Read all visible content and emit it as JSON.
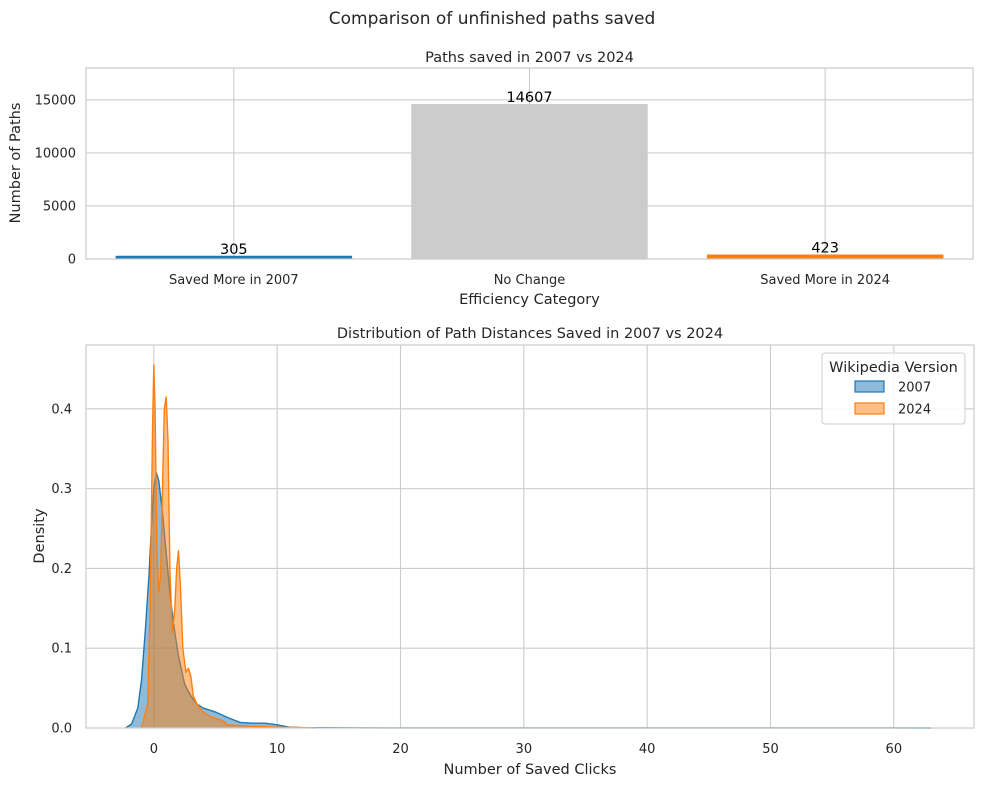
{
  "figure": {
    "suptitle": "Comparison of unfinished paths saved"
  },
  "chart_data": [
    {
      "type": "bar",
      "title": "Paths saved in 2007 vs 2024",
      "xlabel": "Efficiency Category",
      "ylabel": "Number of Paths",
      "categories": [
        "Saved More in 2007",
        "No Change",
        "Saved More in 2024"
      ],
      "values": [
        305,
        14607,
        423
      ],
      "bar_labels": [
        "305",
        "14607",
        "423"
      ],
      "colors": [
        "#1f77b4",
        "#cccccc",
        "#ff7f0e"
      ],
      "ylim": [
        0,
        18000
      ],
      "yticks": [
        0,
        5000,
        10000,
        15000
      ],
      "grid": true
    },
    {
      "type": "area",
      "title": "Distribution of Path Distances Saved in 2007 vs 2024",
      "xlabel": "Number of Saved Clicks",
      "ylabel": "Density",
      "xlim": [
        -5.5,
        66.5
      ],
      "ylim": [
        0,
        0.48
      ],
      "xticks": [
        0,
        10,
        20,
        30,
        40,
        50,
        60
      ],
      "yticks": [
        0.0,
        0.1,
        0.2,
        0.3,
        0.4
      ],
      "grid": true,
      "legend": {
        "title": "Wikipedia Version",
        "placement": "top-right"
      },
      "series": [
        {
          "name": "2007",
          "color": "#1f77b4",
          "x": [
            -2.3,
            -1.8,
            -1.3,
            -1.0,
            -0.7,
            -0.4,
            -0.2,
            0.0,
            0.2,
            0.4,
            0.7,
            1.0,
            1.3,
            1.6,
            2.0,
            2.5,
            3.0,
            3.5,
            4.0,
            5.0,
            6.0,
            7.0,
            8.0,
            9.0,
            10.0,
            11.0,
            12.0,
            14.0,
            16.0,
            20.0,
            30.0,
            40.0,
            50.0,
            60.0,
            63.0
          ],
          "y": [
            0.0,
            0.005,
            0.025,
            0.06,
            0.12,
            0.19,
            0.25,
            0.3,
            0.32,
            0.31,
            0.27,
            0.22,
            0.17,
            0.13,
            0.09,
            0.055,
            0.04,
            0.03,
            0.025,
            0.02,
            0.013,
            0.007,
            0.006,
            0.006,
            0.004,
            0.001,
            0.0005,
            0.0003,
            0.0002,
            0.0001,
            0.0001,
            0.0001,
            0.0001,
            0.0001,
            0.0
          ]
        },
        {
          "name": "2024",
          "color": "#ff7f0e",
          "x": [
            -1.0,
            -0.5,
            -0.3,
            -0.1,
            0.0,
            0.1,
            0.25,
            0.4,
            0.55,
            0.7,
            0.85,
            1.0,
            1.15,
            1.3,
            1.5,
            1.7,
            1.85,
            2.0,
            2.15,
            2.35,
            2.6,
            2.8,
            3.0,
            3.2,
            3.5,
            4.0,
            4.5,
            5.0,
            5.5,
            6.0,
            7.0,
            8.0,
            10.0,
            12.0,
            13.0
          ],
          "y": [
            0.0,
            0.03,
            0.15,
            0.38,
            0.455,
            0.4,
            0.22,
            0.17,
            0.19,
            0.3,
            0.4,
            0.415,
            0.36,
            0.2,
            0.12,
            0.15,
            0.2,
            0.222,
            0.18,
            0.1,
            0.07,
            0.075,
            0.065,
            0.04,
            0.03,
            0.02,
            0.015,
            0.012,
            0.01,
            0.004,
            0.003,
            0.002,
            0.001,
            0.0005,
            0.0
          ]
        }
      ]
    }
  ]
}
